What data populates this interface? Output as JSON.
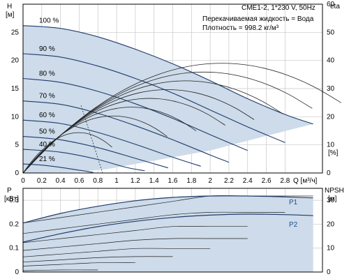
{
  "chart_data": [
    {
      "type": "line",
      "title": "CME1-2, 1*230 V, 50Hz",
      "info_lines": [
        "Перекачиваемая жидкость = Вода",
        "Плотность = 998.2 кг/м³"
      ],
      "ylabel_left": [
        "H",
        "[м]"
      ],
      "ylabel_right": [
        "eta",
        "[%]"
      ],
      "xlabel": "Q [м³/ч]",
      "xlim": [
        0,
        3.2
      ],
      "ylim_left": [
        0,
        30
      ],
      "ylim_right": [
        0,
        60
      ],
      "x_ticks": [
        "0",
        "0.2",
        "0.4",
        "0.6",
        "0.8",
        "1",
        "1.2",
        "1.4",
        "1.6",
        "1.8",
        "2",
        "2.2",
        "2.4",
        "2.6",
        "2.8"
      ],
      "y_ticks_left": [
        "0",
        "5",
        "10",
        "15",
        "20",
        "25"
      ],
      "y_ticks_right": [
        "0",
        "10",
        "20",
        "30",
        "40",
        "50",
        "60"
      ],
      "speed_labels": [
        "100 %",
        "90 %",
        "80 %",
        "70 %",
        "60 %",
        "50 %",
        "40 %",
        "21 %"
      ],
      "series": [
        {
          "name": "100 %",
          "speed": 1.0,
          "x": [
            0,
            0.4,
            0.8,
            1.2,
            1.6,
            2.0,
            2.4,
            2.8,
            3.1
          ],
          "y": [
            26.2,
            25.7,
            24.2,
            22.0,
            19.4,
            16.4,
            13.2,
            10.4,
            8.7
          ]
        },
        {
          "name": "90 %",
          "speed": 0.9,
          "x": [
            0,
            0.4,
            0.8,
            1.2,
            1.6,
            2.0,
            2.4,
            2.8
          ],
          "y": [
            21.2,
            20.6,
            19.0,
            16.8,
            14.2,
            11.2,
            8.2,
            5.4
          ]
        },
        {
          "name": "80 %",
          "speed": 0.8,
          "x": [
            0,
            0.4,
            0.8,
            1.2,
            1.6,
            2.0,
            2.4
          ],
          "y": [
            16.8,
            16.1,
            14.5,
            12.3,
            9.7,
            6.8,
            4.0
          ]
        },
        {
          "name": "70 %",
          "speed": 0.7,
          "x": [
            0,
            0.4,
            0.8,
            1.2,
            1.6,
            2.0,
            2.2
          ],
          "y": [
            12.8,
            12.2,
            10.6,
            8.4,
            5.9,
            3.2,
            1.9
          ]
        },
        {
          "name": "60 %",
          "speed": 0.6,
          "x": [
            0,
            0.4,
            0.8,
            1.2,
            1.6,
            1.9
          ],
          "y": [
            9.4,
            8.8,
            7.2,
            5.1,
            2.8,
            1.2
          ]
        },
        {
          "name": "50 %",
          "speed": 0.5,
          "x": [
            0,
            0.4,
            0.8,
            1.2,
            1.55
          ],
          "y": [
            6.5,
            5.9,
            4.5,
            2.6,
            0.9
          ]
        },
        {
          "name": "40 %",
          "speed": 0.4,
          "x": [
            0,
            0.4,
            0.8,
            1.1,
            1.3
          ],
          "y": [
            4.2,
            3.7,
            2.4,
            1.0,
            0.4
          ]
        },
        {
          "name": "21 %",
          "speed": 0.21,
          "x": [
            0,
            0.2,
            0.4,
            0.6,
            0.75
          ],
          "y": [
            1.6,
            1.4,
            1.0,
            0.5,
            0.1
          ]
        }
      ],
      "efficiency_peak_percent": 39
    },
    {
      "type": "line",
      "ylabel_left": [
        "P",
        "[кВт]"
      ],
      "ylabel_right": [
        "NPSH",
        "[м]"
      ],
      "xlim": [
        0,
        3.2
      ],
      "ylim_left": [
        0,
        0.35
      ],
      "ylim_right": [
        0,
        35
      ],
      "y_ticks_left": [
        "0",
        "0.1",
        "0.2",
        "0.3"
      ],
      "y_ticks_right": [
        "0",
        "10",
        "20",
        "30"
      ],
      "curve_labels": [
        "P1",
        "P2"
      ],
      "series": [
        {
          "name": "P1",
          "x": [
            0,
            0.4,
            0.8,
            1.2,
            1.6,
            2.0,
            2.4,
            2.8,
            3.1
          ],
          "y": [
            0.205,
            0.245,
            0.275,
            0.298,
            0.312,
            0.318,
            0.318,
            0.314,
            0.31
          ]
        },
        {
          "name": "P2",
          "x": [
            0,
            0.4,
            0.8,
            1.2,
            1.6,
            2.0,
            2.4,
            2.8,
            3.1
          ],
          "y": [
            0.125,
            0.16,
            0.19,
            0.212,
            0.228,
            0.238,
            0.242,
            0.24,
            0.236
          ]
        }
      ]
    }
  ]
}
